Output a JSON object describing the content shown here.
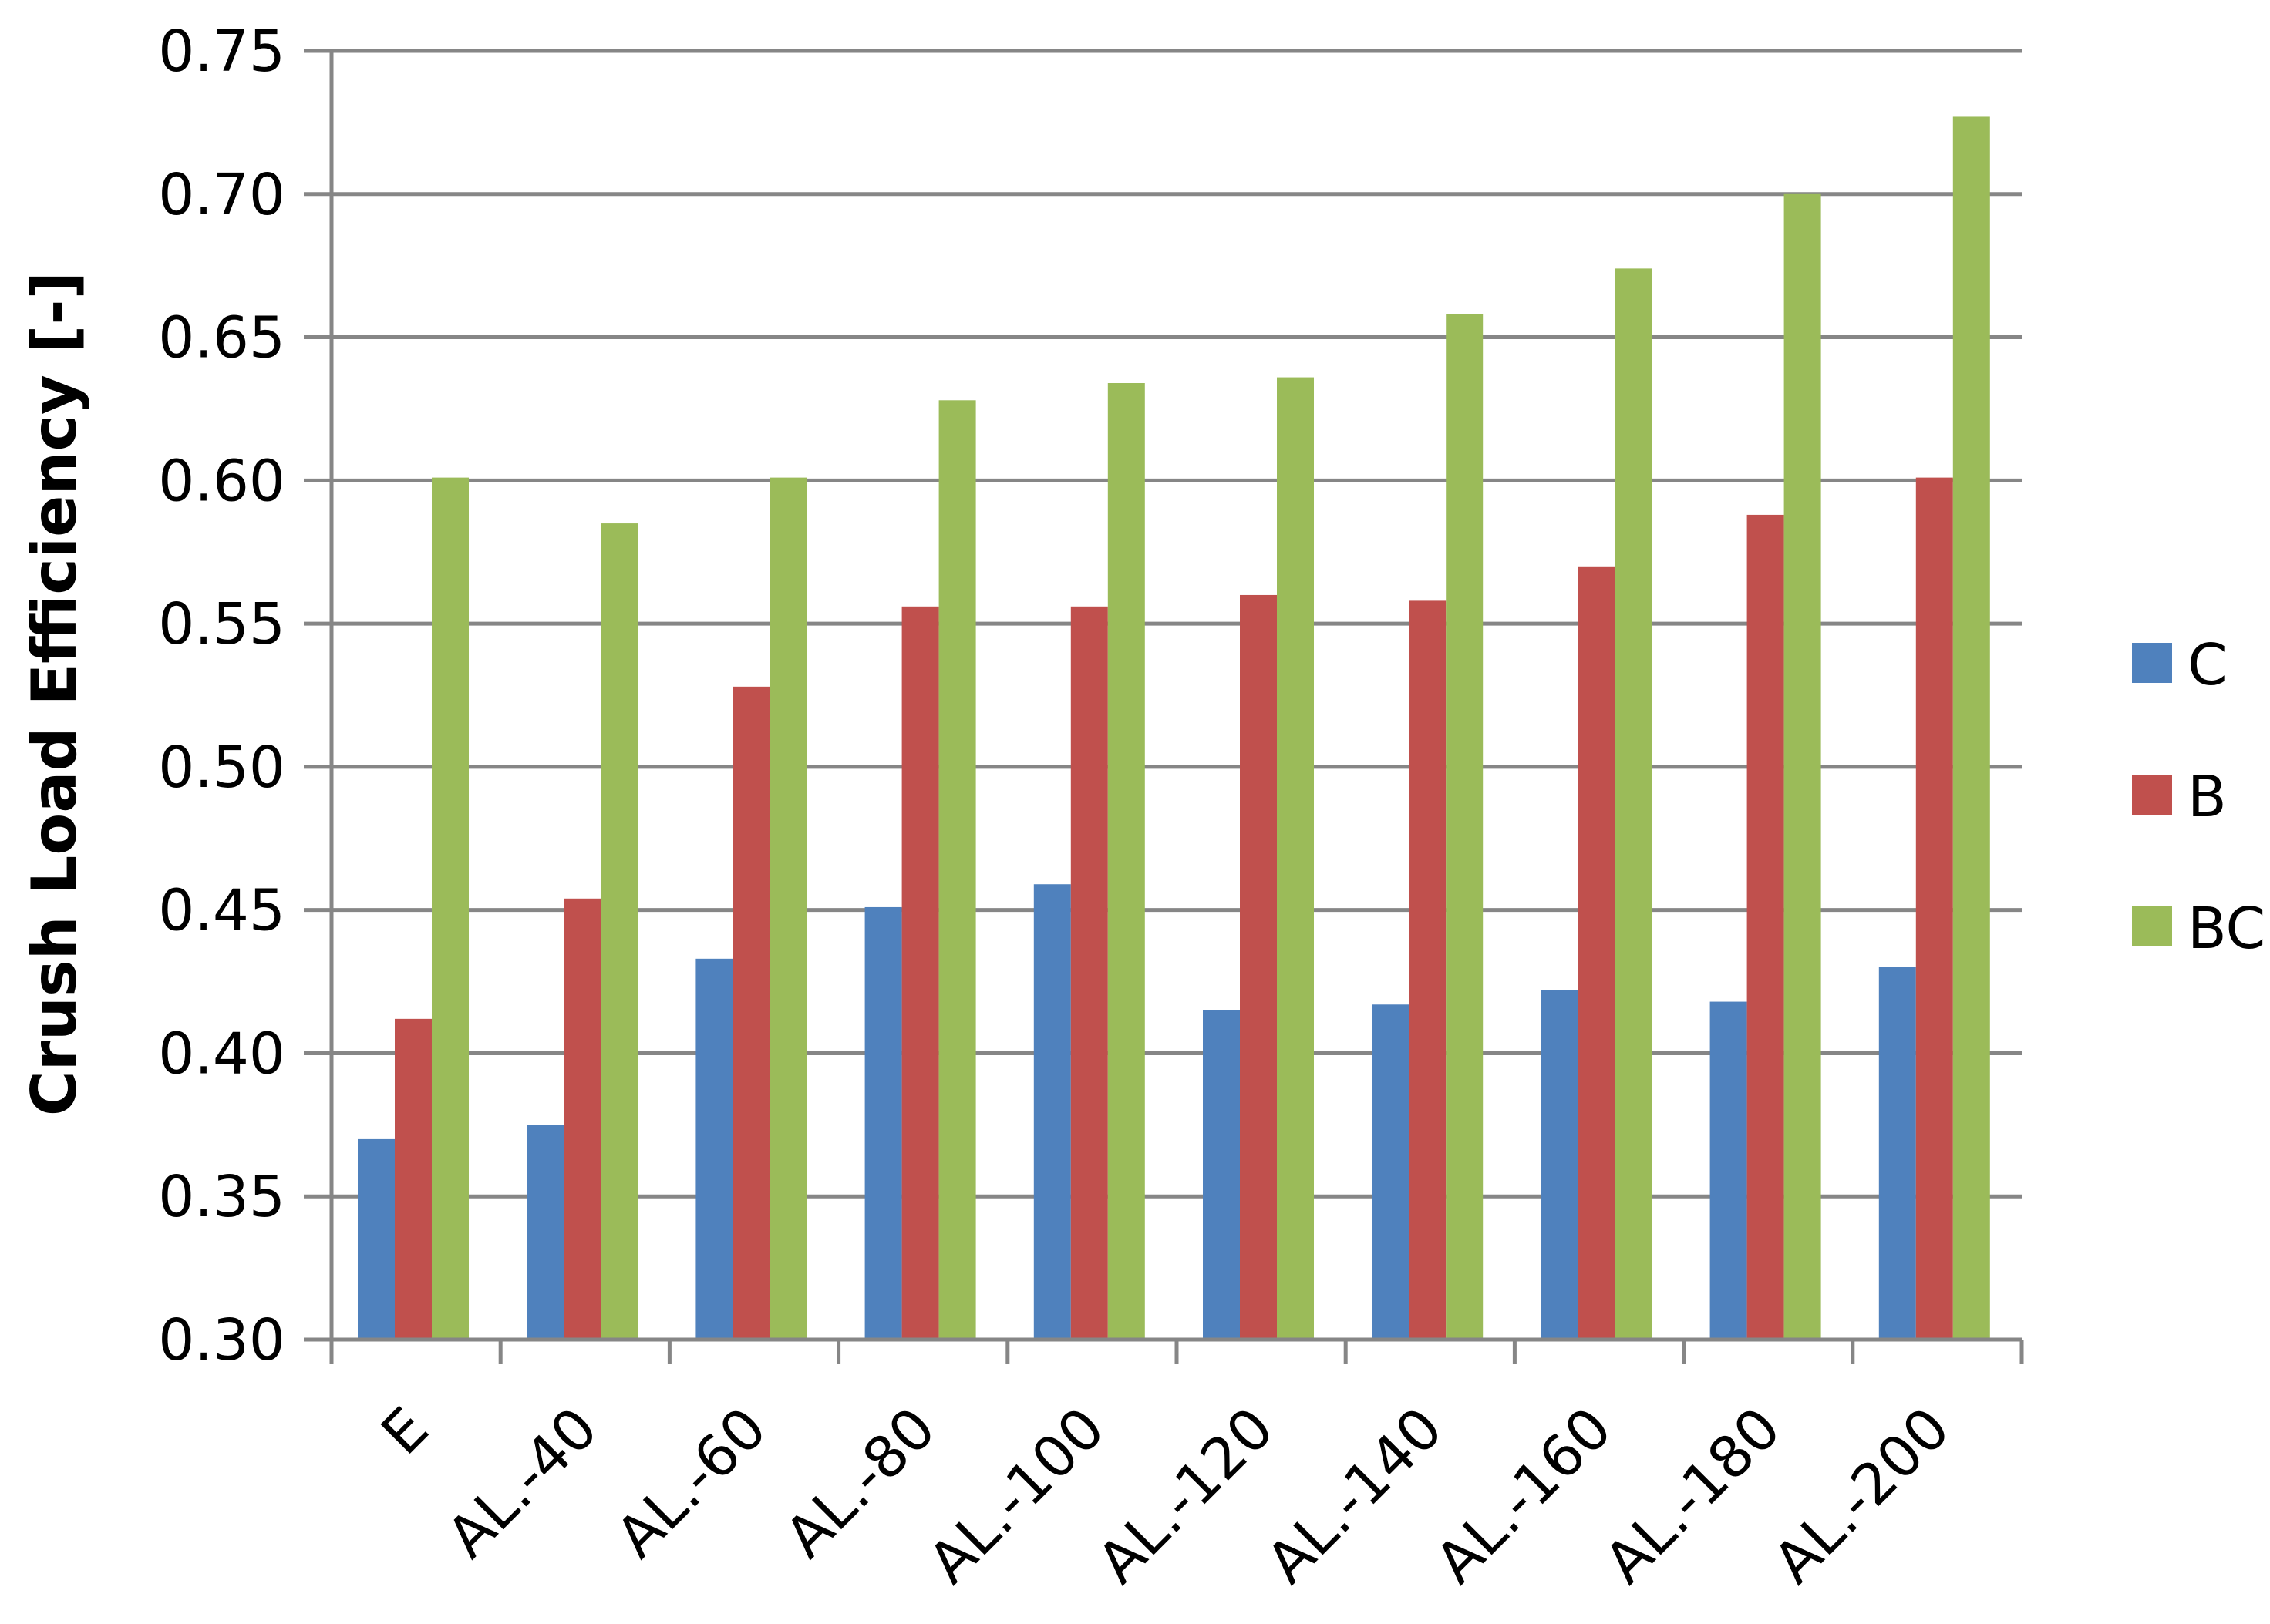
{
  "chart_data": {
    "type": "bar",
    "title": "",
    "xlabel": "",
    "ylabel": "Crush Load Efficiency [-]",
    "ylim": [
      0.3,
      0.75
    ],
    "yticks": [
      "0.30",
      "0.35",
      "0.40",
      "0.45",
      "0.50",
      "0.55",
      "0.60",
      "0.65",
      "0.70",
      "0.75"
    ],
    "grid": true,
    "legend_position": "right",
    "categories": [
      "E",
      "AL.-40",
      "AL.-60",
      "AL.-80",
      "AL.-100",
      "AL.-120",
      "AL.-140",
      "AL.-160",
      "AL.-180",
      "AL.-200"
    ],
    "series": [
      {
        "name": "C",
        "color": "#4F81BD",
        "values": [
          0.37,
          0.375,
          0.433,
          0.451,
          0.459,
          0.415,
          0.417,
          0.422,
          0.418,
          0.43
        ]
      },
      {
        "name": "B",
        "color": "#C0504D",
        "values": [
          0.412,
          0.454,
          0.528,
          0.556,
          0.556,
          0.56,
          0.558,
          0.57,
          0.588,
          0.601
        ]
      },
      {
        "name": "BC",
        "color": "#9BBB59",
        "values": [
          0.601,
          0.585,
          0.601,
          0.628,
          0.634,
          0.636,
          0.658,
          0.674,
          0.7,
          0.727
        ]
      }
    ]
  }
}
